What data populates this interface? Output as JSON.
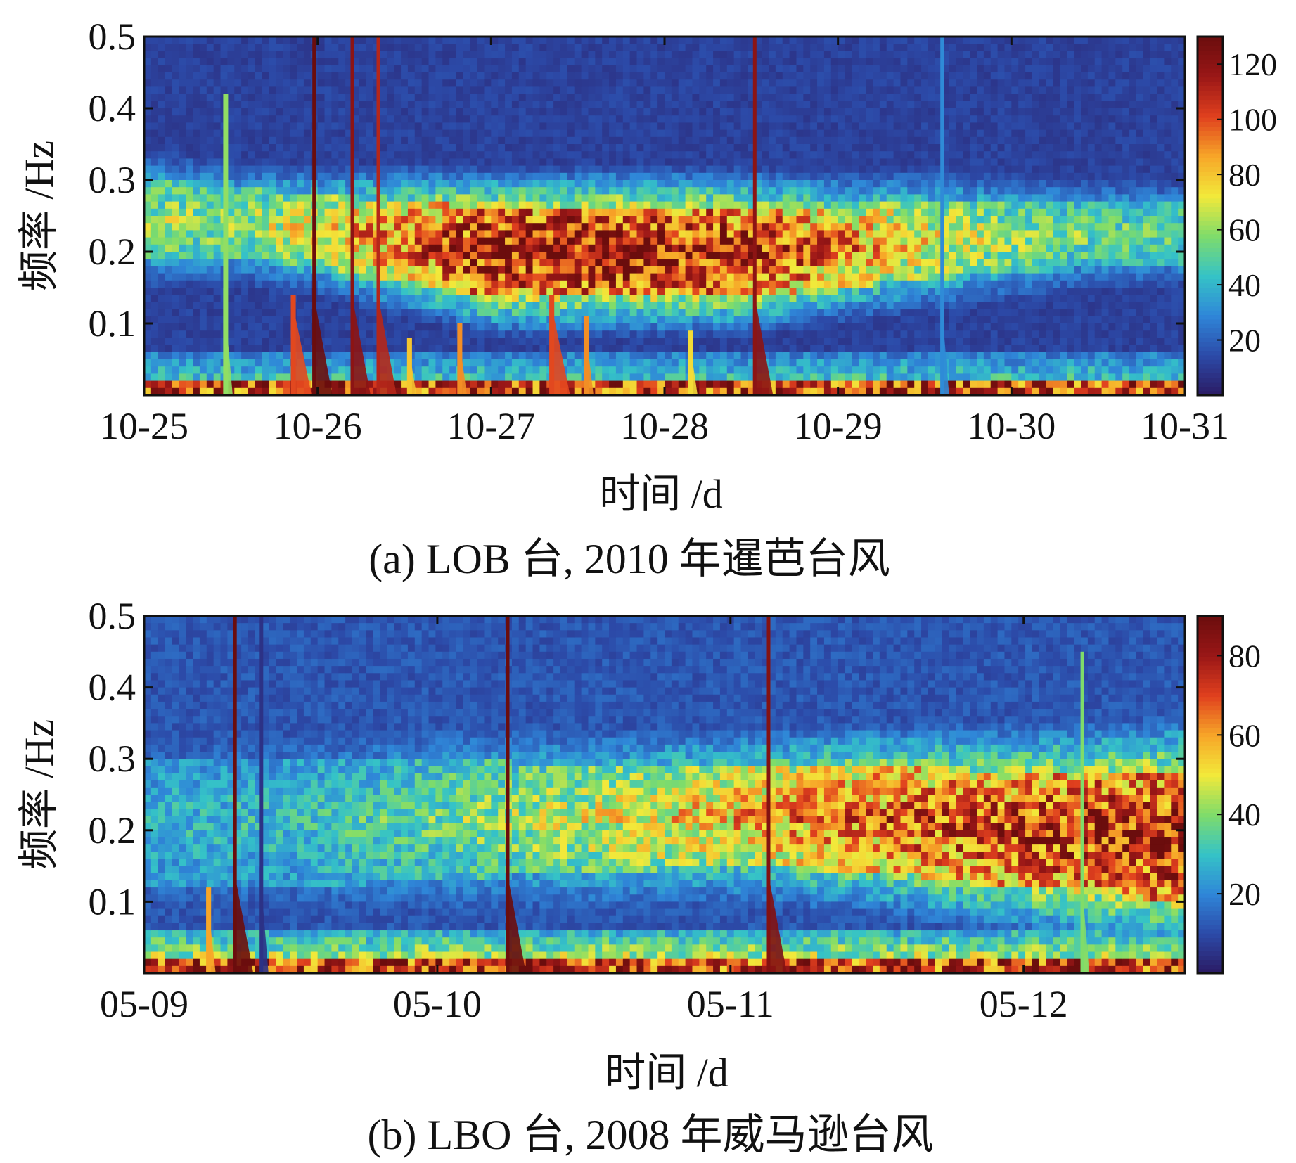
{
  "figure": {
    "panels": [
      {
        "caption": "(a) LOB 台, 2010 年暹芭台风",
        "x_label": "时间 /d",
        "y_label": "频率 /Hz"
      },
      {
        "caption": "(b) LBO 台, 2008 年威马逊台风",
        "x_label": "时间 /d",
        "y_label": "频率 /Hz"
      }
    ]
  },
  "colormap": [
    "#2b1a63",
    "#2c4aa8",
    "#2f86d8",
    "#35c3c7",
    "#7fdc6a",
    "#f2e93a",
    "#f7a628",
    "#e0401e",
    "#9a1717",
    "#6b0d0d"
  ],
  "chart_data": [
    {
      "type": "heatmap",
      "title": "",
      "caption": "(a) LOB 台, 2010 年暹芭台风",
      "xlabel": "时间 /d",
      "ylabel": "频率 /Hz",
      "x_ticks": [
        "10-25",
        "10-26",
        "10-27",
        "10-28",
        "10-29",
        "10-30",
        "10-31"
      ],
      "x_range_days": [
        0,
        6
      ],
      "y_ticks": [
        "0.1",
        "0.2",
        "0.3",
        "0.4",
        "0.5"
      ],
      "ylim": [
        0.0,
        0.5
      ],
      "colorbar": {
        "ticks": [
          "20",
          "40",
          "60",
          "80",
          "100",
          "120"
        ],
        "range": [
          0,
          130
        ]
      },
      "microseism_band": [
        {
          "day": 0.0,
          "f_low": 0.19,
          "f_high": 0.3,
          "level": 62
        },
        {
          "day": 0.5,
          "f_low": 0.19,
          "f_high": 0.29,
          "level": 60
        },
        {
          "day": 1.0,
          "f_low": 0.18,
          "f_high": 0.28,
          "level": 75
        },
        {
          "day": 1.5,
          "f_low": 0.16,
          "f_high": 0.27,
          "level": 100
        },
        {
          "day": 2.0,
          "f_low": 0.14,
          "f_high": 0.26,
          "level": 120
        },
        {
          "day": 2.5,
          "f_low": 0.14,
          "f_high": 0.26,
          "level": 122
        },
        {
          "day": 3.0,
          "f_low": 0.14,
          "f_high": 0.26,
          "level": 120
        },
        {
          "day": 3.5,
          "f_low": 0.14,
          "f_high": 0.26,
          "level": 115
        },
        {
          "day": 4.0,
          "f_low": 0.15,
          "f_high": 0.26,
          "level": 95
        },
        {
          "day": 4.5,
          "f_low": 0.16,
          "f_high": 0.27,
          "level": 75
        },
        {
          "day": 5.0,
          "f_low": 0.17,
          "f_high": 0.27,
          "level": 62
        },
        {
          "day": 5.5,
          "f_low": 0.18,
          "f_high": 0.27,
          "level": 55
        },
        {
          "day": 6.0,
          "f_low": 0.18,
          "f_high": 0.27,
          "level": 52
        }
      ],
      "earthquake_events": [
        {
          "day": 0.47,
          "f_top": 0.42,
          "level": 60
        },
        {
          "day": 0.86,
          "f_top": 0.14,
          "level": 100
        },
        {
          "day": 0.98,
          "f_top": 0.5,
          "level": 130
        },
        {
          "day": 1.2,
          "f_top": 0.5,
          "level": 120
        },
        {
          "day": 1.35,
          "f_top": 0.5,
          "level": 110
        },
        {
          "day": 1.53,
          "f_top": 0.08,
          "level": 80
        },
        {
          "day": 1.82,
          "f_top": 0.1,
          "level": 90
        },
        {
          "day": 2.35,
          "f_top": 0.14,
          "level": 100
        },
        {
          "day": 2.55,
          "f_top": 0.11,
          "level": 90
        },
        {
          "day": 3.15,
          "f_top": 0.09,
          "level": 75
        },
        {
          "day": 3.52,
          "f_top": 0.5,
          "level": 120
        },
        {
          "day": 4.6,
          "f_top": 0.5,
          "level": 30
        }
      ]
    },
    {
      "type": "heatmap",
      "title": "",
      "caption": "(b) LBO 台, 2008 年威马逊台风",
      "xlabel": "时间 /d",
      "ylabel": "频率 /Hz",
      "x_ticks": [
        "05-09",
        "05-10",
        "05-11",
        "05-12"
      ],
      "x_range_days": [
        0,
        3.55
      ],
      "y_ticks": [
        "0.1",
        "0.2",
        "0.3",
        "0.4",
        "0.5"
      ],
      "ylim": [
        0.0,
        0.5
      ],
      "colorbar": {
        "ticks": [
          "20",
          "40",
          "60",
          "80"
        ],
        "range": [
          0,
          90
        ]
      },
      "microseism_band": [
        {
          "day": 0.0,
          "f_low": 0.12,
          "f_high": 0.3,
          "level": 28
        },
        {
          "day": 0.5,
          "f_low": 0.12,
          "f_high": 0.3,
          "level": 30
        },
        {
          "day": 1.0,
          "f_low": 0.13,
          "f_high": 0.3,
          "level": 38
        },
        {
          "day": 1.5,
          "f_low": 0.14,
          "f_high": 0.29,
          "level": 48
        },
        {
          "day": 2.0,
          "f_low": 0.15,
          "f_high": 0.29,
          "level": 58
        },
        {
          "day": 2.5,
          "f_low": 0.14,
          "f_high": 0.29,
          "level": 68
        },
        {
          "day": 3.0,
          "f_low": 0.12,
          "f_high": 0.28,
          "level": 76
        },
        {
          "day": 3.55,
          "f_low": 0.1,
          "f_high": 0.28,
          "level": 82
        }
      ],
      "earthquake_events": [
        {
          "day": 0.22,
          "f_top": 0.12,
          "level": 60
        },
        {
          "day": 0.31,
          "f_top": 0.5,
          "level": 90
        },
        {
          "day": 0.4,
          "f_top": 0.5,
          "level": 5
        },
        {
          "day": 1.24,
          "f_top": 0.5,
          "level": 90
        },
        {
          "day": 2.13,
          "f_top": 0.5,
          "level": 85
        },
        {
          "day": 3.2,
          "f_top": 0.45,
          "level": 40
        }
      ]
    }
  ]
}
